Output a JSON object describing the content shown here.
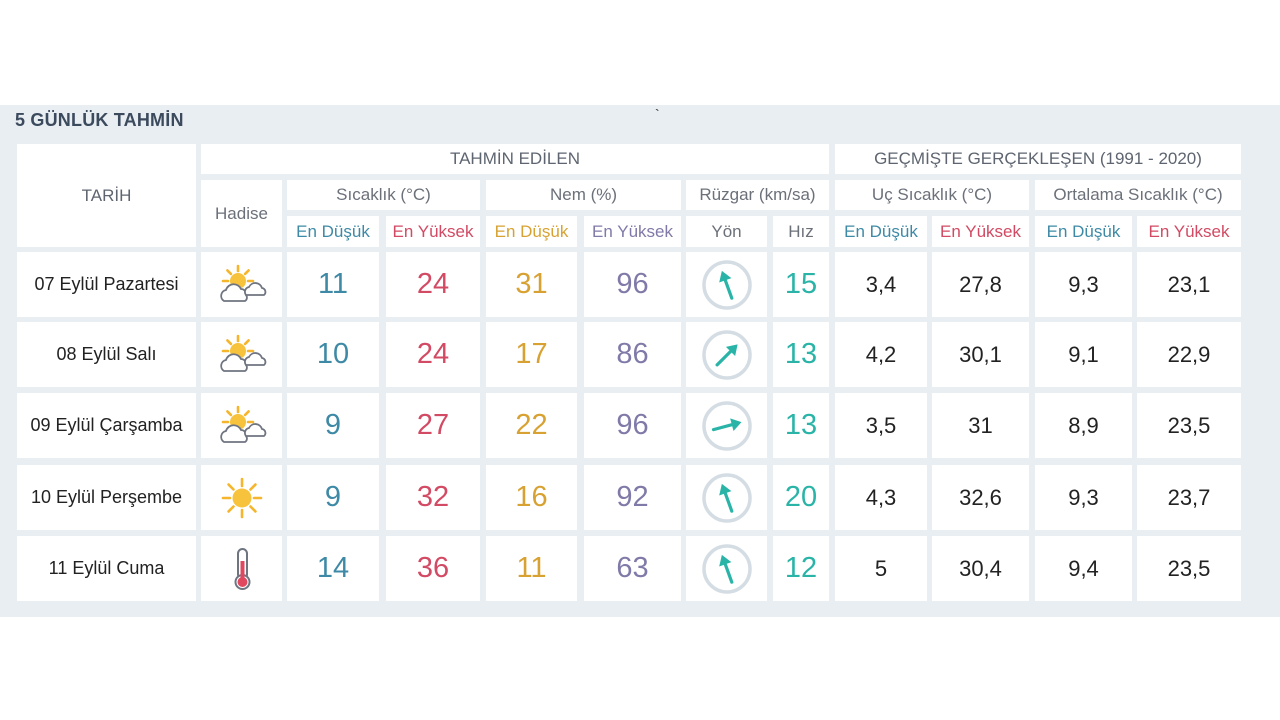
{
  "title": "5 GÜNLÜK TAHMİN",
  "stray_mark": "`",
  "headers": {
    "tarih": "TARİH",
    "hadise": "Hadise",
    "tahmin": "TAHMİN EDİLEN",
    "gecmis": "GEÇMİŞTE GERÇEKLEŞEN (1991 - 2020)",
    "sicaklik": "Sıcaklık (°C)",
    "nem": "Nem (%)",
    "ruzgar": "Rüzgar (km/sa)",
    "uc_sicaklik": "Uç Sıcaklık (°C)",
    "ort_sicaklik": "Ortalama Sıcaklık (°C)",
    "en_dusuk": "En Düşük",
    "en_yuksek": "En Yüksek",
    "yon": "Yön",
    "hiz": "Hız"
  },
  "colors": {
    "low": "#3e8aa6",
    "high": "#d24a63",
    "humidity_low": "#d8a233",
    "humidity_high": "#7f7aa8",
    "wind": "#2ab4a8"
  },
  "rows": [
    {
      "date": "07 Eylül Pazartesi",
      "icon": "partly-cloudy-icon",
      "temp_low": "11",
      "temp_high": "24",
      "hum_low": "31",
      "hum_high": "96",
      "wind_dir_deg": 160,
      "wind_speed": "15",
      "uc_low": "3,4",
      "uc_high": "27,8",
      "ort_low": "9,3",
      "ort_high": "23,1"
    },
    {
      "date": "08 Eylül Salı",
      "icon": "partly-cloudy-icon",
      "temp_low": "10",
      "temp_high": "24",
      "hum_low": "17",
      "hum_high": "86",
      "wind_dir_deg": 225,
      "wind_speed": "13",
      "uc_low": "4,2",
      "uc_high": "30,1",
      "ort_low": "9,1",
      "ort_high": "22,9"
    },
    {
      "date": "09 Eylül Çarşamba",
      "icon": "partly-cloudy-icon",
      "temp_low": "9",
      "temp_high": "27",
      "hum_low": "22",
      "hum_high": "96",
      "wind_dir_deg": 255,
      "wind_speed": "13",
      "uc_low": "3,5",
      "uc_high": "31",
      "ort_low": "8,9",
      "ort_high": "23,5"
    },
    {
      "date": "10 Eylül Perşembe",
      "icon": "sun-icon",
      "temp_low": "9",
      "temp_high": "32",
      "hum_low": "16",
      "hum_high": "92",
      "wind_dir_deg": 160,
      "wind_speed": "20",
      "uc_low": "4,3",
      "uc_high": "32,6",
      "ort_low": "9,3",
      "ort_high": "23,7"
    },
    {
      "date": "11 Eylül Cuma",
      "icon": "thermometer-icon",
      "temp_low": "14",
      "temp_high": "36",
      "hum_low": "11",
      "hum_high": "63",
      "wind_dir_deg": 160,
      "wind_speed": "12",
      "uc_low": "5",
      "uc_high": "30,4",
      "ort_low": "9,4",
      "ort_high": "23,5"
    }
  ]
}
